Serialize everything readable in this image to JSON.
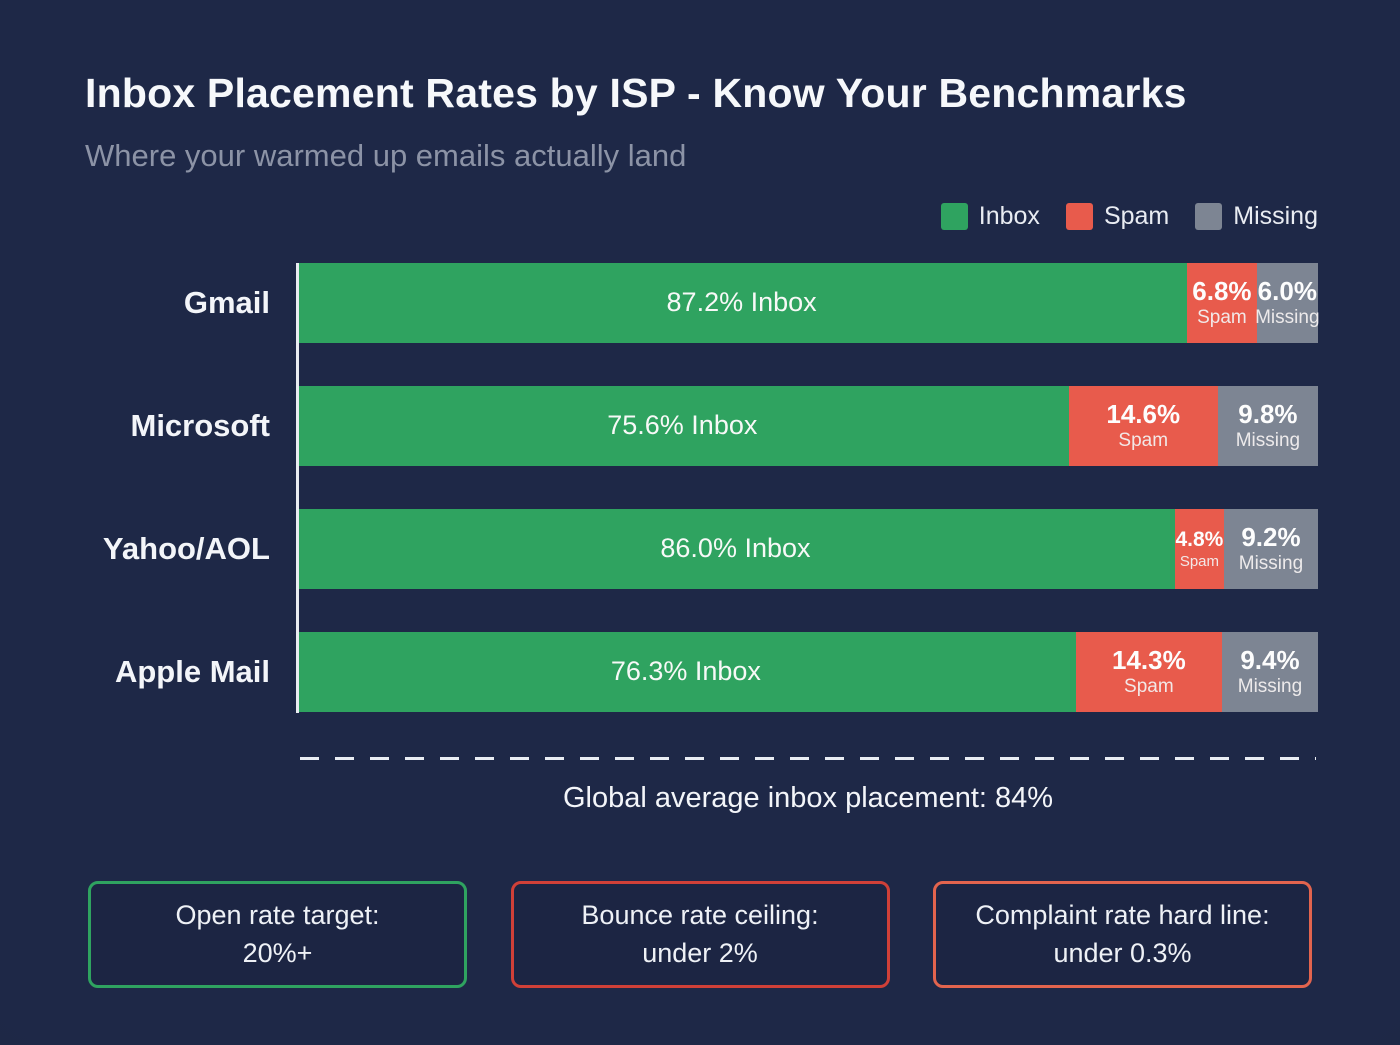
{
  "chart_data": {
    "type": "bar",
    "orientation": "horizontal",
    "stacked": true,
    "title": "Inbox Placement Rates by ISP - Know Your Benchmarks",
    "subtitle": "Where your warmed up emails actually land",
    "categories": [
      "Gmail",
      "Microsoft",
      "Yahoo/AOL",
      "Apple Mail"
    ],
    "series": [
      {
        "name": "Inbox",
        "color": "#2fa360",
        "values": [
          87.2,
          75.6,
          86.0,
          76.3
        ]
      },
      {
        "name": "Spam",
        "color": "#e85b4c",
        "values": [
          6.8,
          14.6,
          4.8,
          14.3
        ]
      },
      {
        "name": "Missing",
        "color": "#7d8593",
        "values": [
          6.0,
          9.8,
          9.2,
          9.4
        ]
      }
    ],
    "xlim": [
      0,
      100
    ],
    "grid": false,
    "legend_position": "top-right",
    "annotation": "Global average inbox placement: 84%"
  },
  "footer": {
    "boxes": [
      {
        "line1": "Open rate target:",
        "line2": "20%+",
        "border_color": "#2fa360"
      },
      {
        "line1": "Bounce rate ceiling:",
        "line2": "under 2%",
        "border_color": "#d04038"
      },
      {
        "line1": "Complaint rate hard line:",
        "line2": "under 0.3%",
        "border_color": "#e2644e"
      }
    ]
  },
  "colors": {
    "background": "#1e2847",
    "title_text": "#f6f8fb",
    "subtitle_text": "#8c93a6",
    "axis_line": "#e9ecf1",
    "bar_label_text": "#fdfdfd"
  }
}
